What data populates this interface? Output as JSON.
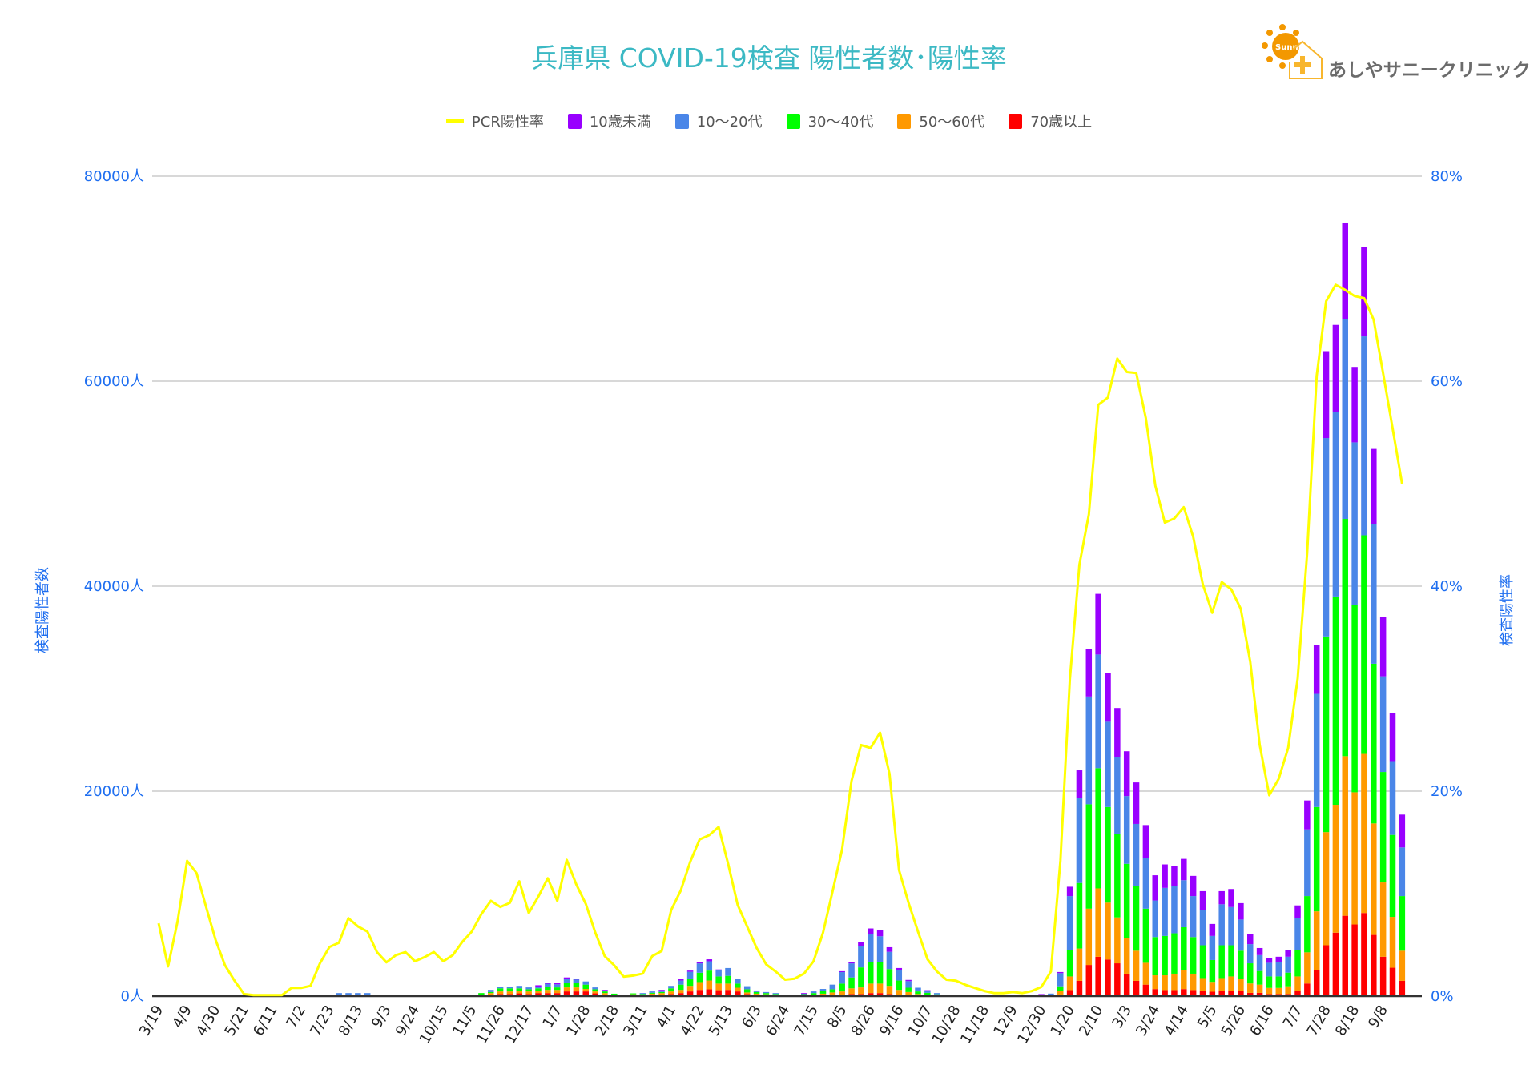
{
  "chart_data": {
    "type": "bar",
    "title": "兵庫県  COVID-19検査  陽性者数･陽性率",
    "ylabel": "検査陽性者数",
    "y2label": "検査陽性率",
    "ylim": [
      0,
      80000
    ],
    "y2lim": [
      0,
      80
    ],
    "grid": true,
    "legend_placement": "top",
    "stacked": true,
    "y_ticks": [
      "0人",
      "20000人",
      "40000人",
      "60000人",
      "80000人"
    ],
    "y2_ticks": [
      "0%",
      "20%",
      "40%",
      "60%",
      "80%"
    ],
    "x_tick_labels": [
      "3/19",
      "4/9",
      "4/30",
      "5/21",
      "6/11",
      "7/2",
      "7/23",
      "8/13",
      "9/3",
      "9/24",
      "10/15",
      "11/5",
      "11/26",
      "12/17",
      "1/7",
      "1/28",
      "2/18",
      "3/11",
      "4/1",
      "4/22",
      "5/13",
      "6/3",
      "6/24",
      "7/15",
      "8/5",
      "8/26",
      "9/16",
      "10/7",
      "10/28",
      "11/18",
      "12/9",
      "12/30",
      "1/20",
      "2/10",
      "3/3",
      "3/24",
      "4/14",
      "5/5",
      "5/26",
      "6/16",
      "7/7",
      "7/28",
      "8/18",
      "9/8"
    ],
    "x_tick_every": 3,
    "n_weeks": 132,
    "legend": [
      "PCR陽性率",
      "10歳未満",
      "10～20代",
      "30～40代",
      "50～60代",
      "70歳以上"
    ],
    "line": {
      "name": "PCR陽性率",
      "color": "#ffff00",
      "axis": "right",
      "values": [
        7.1,
        2.9,
        7.3,
        13.2,
        12.0,
        8.7,
        5.5,
        3.0,
        1.5,
        0.2,
        0.1,
        0.1,
        0.1,
        0.1,
        0.8,
        0.8,
        1.0,
        3.2,
        4.8,
        5.2,
        7.6,
        6.8,
        6.3,
        4.3,
        3.3,
        4.0,
        4.3,
        3.4,
        3.8,
        4.3,
        3.4,
        4.0,
        5.3,
        6.3,
        8.0,
        9.3,
        8.7,
        9.1,
        11.2,
        8.1,
        9.7,
        11.5,
        9.3,
        13.3,
        10.9,
        9.0,
        6.2,
        3.9,
        3.0,
        1.9,
        2.0,
        2.2,
        3.9,
        4.4,
        8.4,
        10.3,
        13.1,
        15.3,
        15.7,
        16.5,
        12.9,
        8.9,
        6.8,
        4.7,
        3.1,
        2.4,
        1.6,
        1.7,
        2.2,
        3.4,
        6.2,
        10.2,
        14.3,
        21.0,
        24.5,
        24.2,
        25.7,
        21.7,
        12.3,
        9.1,
        6.3,
        3.6,
        2.4,
        1.6,
        1.5,
        1.1,
        0.8,
        0.5,
        0.3,
        0.3,
        0.4,
        0.3,
        0.5,
        0.9,
        2.4,
        13.2,
        30.9,
        42.1,
        47.0,
        57.7,
        58.4,
        62.2,
        60.9,
        60.8,
        56.4,
        49.8,
        46.2,
        46.6,
        47.7,
        44.8,
        40.2,
        37.4,
        40.4,
        39.7,
        37.8,
        32.6,
        24.5,
        19.6,
        21.2,
        24.2,
        31.0,
        43.2,
        60.5,
        67.8,
        69.4,
        68.9,
        68.3,
        68.1,
        66.0,
        60.8,
        55.4,
        50.0
      ]
    },
    "series": [
      {
        "name": "70歳以上",
        "color": "#ff0000",
        "values": [
          0,
          0,
          0,
          0,
          0,
          0,
          0,
          0,
          0,
          0,
          0,
          0,
          0,
          0,
          0,
          0,
          0,
          0,
          0,
          0,
          0,
          0,
          0,
          0,
          0,
          0,
          0,
          0,
          0,
          0,
          0,
          0,
          0,
          0,
          0,
          150,
          210,
          210,
          270,
          210,
          300,
          300,
          300,
          460,
          460,
          460,
          270,
          150,
          0,
          0,
          90,
          90,
          150,
          150,
          210,
          300,
          460,
          610,
          670,
          580,
          610,
          460,
          210,
          150,
          90,
          60,
          0,
          0,
          60,
          60,
          90,
          120,
          150,
          210,
          210,
          300,
          300,
          210,
          150,
          120,
          60,
          60,
          30,
          0,
          0,
          0,
          0,
          0,
          0,
          0,
          0,
          0,
          0,
          0,
          30,
          160,
          590,
          1490,
          3040,
          3840,
          3570,
          3200,
          2190,
          1490,
          1120,
          690,
          590,
          590,
          690,
          590,
          530,
          430,
          530,
          530,
          530,
          320,
          320,
          210,
          210,
          210,
          530,
          1230,
          2560,
          4960,
          6190,
          7840,
          6990,
          8110,
          5970,
          3840,
          2770,
          1490
        ]
      },
      {
        "name": "50～60代",
        "color": "#ff9900",
        "values": [
          0,
          0,
          0,
          0,
          0,
          0,
          0,
          0,
          0,
          0,
          0,
          0,
          0,
          0,
          0,
          0,
          0,
          0,
          0,
          150,
          150,
          150,
          150,
          0,
          0,
          0,
          0,
          0,
          0,
          0,
          0,
          0,
          150,
          150,
          150,
          150,
          250,
          250,
          250,
          250,
          220,
          310,
          310,
          390,
          390,
          240,
          190,
          150,
          100,
          150,
          90,
          60,
          90,
          150,
          250,
          310,
          540,
          760,
          850,
          640,
          610,
          360,
          150,
          90,
          90,
          60,
          50,
          50,
          60,
          90,
          150,
          240,
          310,
          550,
          640,
          920,
          920,
          790,
          460,
          280,
          150,
          90,
          60,
          30,
          30,
          0,
          0,
          0,
          0,
          0,
          0,
          0,
          0,
          0,
          40,
          370,
          1330,
          3150,
          5490,
          6670,
          5550,
          4480,
          3460,
          2940,
          2130,
          1340,
          1440,
          1600,
          1870,
          1600,
          1230,
          960,
          1230,
          1390,
          1120,
          910,
          800,
          590,
          590,
          750,
          1390,
          3040,
          5710,
          11040,
          12480,
          15570,
          12900,
          15520,
          10880,
          7250,
          4960,
          2940
        ]
      },
      {
        "name": "30～40代",
        "color": "#00ff00",
        "values": [
          0,
          0,
          0,
          150,
          150,
          150,
          0,
          0,
          0,
          0,
          0,
          0,
          0,
          0,
          0,
          0,
          0,
          0,
          0,
          0,
          0,
          0,
          0,
          150,
          150,
          150,
          150,
          0,
          150,
          150,
          150,
          150,
          0,
          0,
          150,
          100,
          300,
          300,
          240,
          210,
          240,
          300,
          240,
          400,
          400,
          420,
          210,
          160,
          140,
          0,
          90,
          60,
          90,
          100,
          300,
          510,
          670,
          910,
          970,
          700,
          760,
          400,
          310,
          160,
          120,
          90,
          100,
          100,
          90,
          150,
          280,
          310,
          760,
          1060,
          1950,
          2120,
          2120,
          1640,
          910,
          420,
          250,
          180,
          90,
          120,
          120,
          50,
          50,
          0,
          0,
          0,
          0,
          0,
          0,
          0,
          50,
          430,
          2610,
          6400,
          10190,
          11730,
          9330,
          8110,
          7260,
          6290,
          5280,
          3730,
          3840,
          3940,
          4160,
          3570,
          3200,
          2130,
          3200,
          3040,
          2780,
          1970,
          1330,
          1120,
          1120,
          1330,
          2610,
          5490,
          10180,
          19090,
          20320,
          23150,
          18300,
          21330,
          15580,
          10780,
          8000,
          5330
        ]
      },
      {
        "name": "10～20代",
        "color": "#4a86e8",
        "values": [
          0,
          0,
          0,
          0,
          0,
          0,
          0,
          0,
          0,
          0,
          0,
          0,
          0,
          0,
          0,
          0,
          0,
          0,
          150,
          150,
          150,
          150,
          150,
          0,
          0,
          0,
          0,
          150,
          0,
          0,
          0,
          0,
          0,
          0,
          0,
          210,
          150,
          150,
          240,
          180,
          150,
          310,
          300,
          420,
          420,
          310,
          180,
          120,
          0,
          0,
          0,
          90,
          130,
          120,
          240,
          400,
          700,
          910,
          910,
          660,
          760,
          450,
          300,
          150,
          100,
          90,
          0,
          0,
          60,
          160,
          180,
          450,
          1120,
          1370,
          2060,
          2740,
          2500,
          1680,
          1000,
          640,
          360,
          160,
          120,
          0,
          0,
          100,
          100,
          0,
          0,
          0,
          0,
          0,
          0,
          50,
          130,
          1280,
          5230,
          8320,
          10510,
          11090,
          8320,
          7520,
          6610,
          6080,
          4960,
          3570,
          4690,
          4590,
          4590,
          4000,
          3470,
          2350,
          4000,
          3730,
          3040,
          1870,
          1550,
          1330,
          1440,
          1550,
          3100,
          6510,
          11040,
          19360,
          17970,
          19470,
          15840,
          19410,
          13600,
          9330,
          7200,
          4750
        ]
      },
      {
        "name": "10歳未満",
        "color": "#9900ff",
        "values": [
          0,
          0,
          0,
          0,
          0,
          0,
          0,
          0,
          0,
          0,
          0,
          0,
          0,
          0,
          0,
          0,
          0,
          0,
          0,
          0,
          0,
          0,
          0,
          0,
          0,
          0,
          0,
          0,
          0,
          0,
          0,
          0,
          0,
          0,
          0,
          0,
          0,
          0,
          0,
          0,
          150,
          60,
          130,
          150,
          30,
          0,
          0,
          30,
          0,
          0,
          0,
          0,
          0,
          90,
          0,
          150,
          120,
          150,
          190,
          20,
          0,
          0,
          0,
          0,
          0,
          0,
          0,
          0,
          30,
          0,
          0,
          0,
          90,
          150,
          400,
          520,
          600,
          450,
          220,
          120,
          0,
          90,
          0,
          0,
          0,
          0,
          0,
          0,
          0,
          0,
          0,
          0,
          0,
          150,
          0,
          110,
          910,
          2670,
          4640,
          5920,
          4750,
          4800,
          4370,
          4050,
          3200,
          2460,
          2290,
          1970,
          2080,
          1970,
          1810,
          1170,
          1280,
          1760,
          1600,
          960,
          690,
          480,
          480,
          690,
          1220,
          2820,
          4800,
          8480,
          8530,
          9440,
          7360,
          8750,
          7360,
          5760,
          4700,
          3200
        ]
      }
    ]
  },
  "logo": {
    "text": "あしやサニークリニック",
    "badge_text": "Sunny",
    "colors": {
      "sun": "#f39800",
      "house": "#f8b62d",
      "text": "#6b6b6b"
    }
  },
  "colors": {
    "title": "#3cb9c4",
    "axis_labels": "#1e6ef0",
    "grid": "#cccccc"
  }
}
